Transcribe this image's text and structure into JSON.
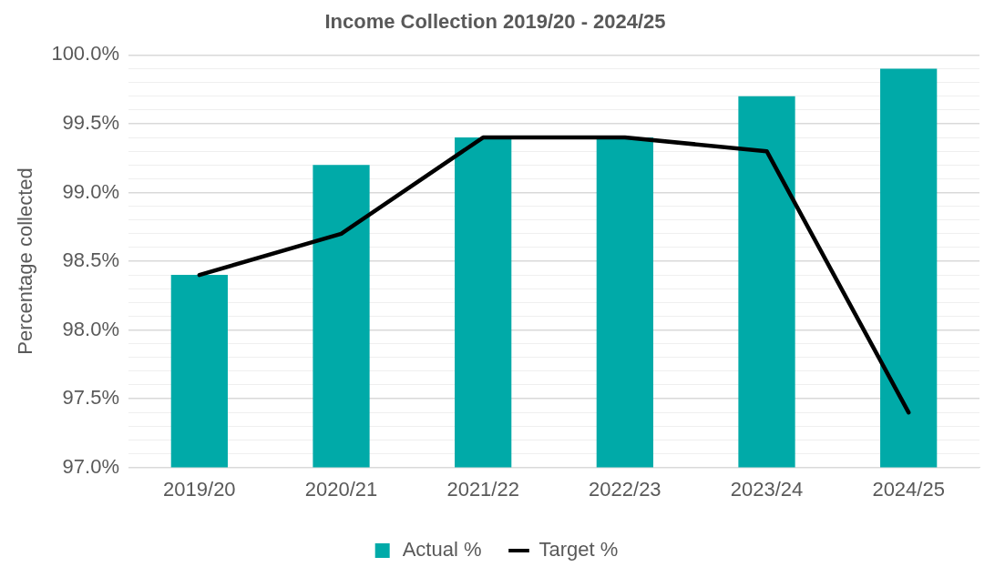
{
  "chart_data": {
    "type": "bar",
    "title": "Income Collection 2019/20 - 2024/25",
    "ylabel": "Percentage collected",
    "categories": [
      "2019/20",
      "2020/21",
      "2021/22",
      "2022/23",
      "2023/24",
      "2024/25"
    ],
    "series": [
      {
        "name": "Actual %",
        "color": "#00aaa8",
        "values": [
          98.4,
          99.2,
          99.4,
          99.4,
          99.7,
          99.9
        ]
      },
      {
        "name": "Target %",
        "type": "line",
        "color": "#000000",
        "values": [
          98.4,
          98.7,
          99.4,
          99.4,
          99.3,
          97.4
        ]
      }
    ],
    "ylim": [
      97,
      100
    ],
    "yticks": [
      {
        "value": 97,
        "label": "97.0%"
      },
      {
        "value": 97.1,
        "label": null
      },
      {
        "value": 97.2,
        "label": null
      },
      {
        "value": 97.3,
        "label": null
      },
      {
        "value": 97.4,
        "label": null
      },
      {
        "value": 97.5,
        "label": "97.5%"
      },
      {
        "value": 97.6,
        "label": null
      },
      {
        "value": 97.7,
        "label": null
      },
      {
        "value": 97.8,
        "label": null
      },
      {
        "value": 97.9,
        "label": null
      },
      {
        "value": 98,
        "label": "98.0%"
      },
      {
        "value": 98.1,
        "label": null
      },
      {
        "value": 98.2,
        "label": null
      },
      {
        "value": 98.3,
        "label": null
      },
      {
        "value": 98.4,
        "label": null
      },
      {
        "value": 98.5,
        "label": "98.5%"
      },
      {
        "value": 98.6,
        "label": null
      },
      {
        "value": 98.7,
        "label": null
      },
      {
        "value": 98.8,
        "label": null
      },
      {
        "value": 98.9,
        "label": null
      },
      {
        "value": 99,
        "label": "99.0%"
      },
      {
        "value": 99.1,
        "label": null
      },
      {
        "value": 99.2,
        "label": null
      },
      {
        "value": 99.3,
        "label": null
      },
      {
        "value": 99.4,
        "label": null
      },
      {
        "value": 99.5,
        "label": "99.5%"
      },
      {
        "value": 99.6,
        "label": null
      },
      {
        "value": 99.7,
        "label": null
      },
      {
        "value": 99.8,
        "label": null
      },
      {
        "value": 99.9,
        "label": null
      },
      {
        "value": 100,
        "label": "100.0%"
      }
    ],
    "grid": "y",
    "legend": "bottom",
    "marker": "none",
    "line_style": "solid"
  }
}
